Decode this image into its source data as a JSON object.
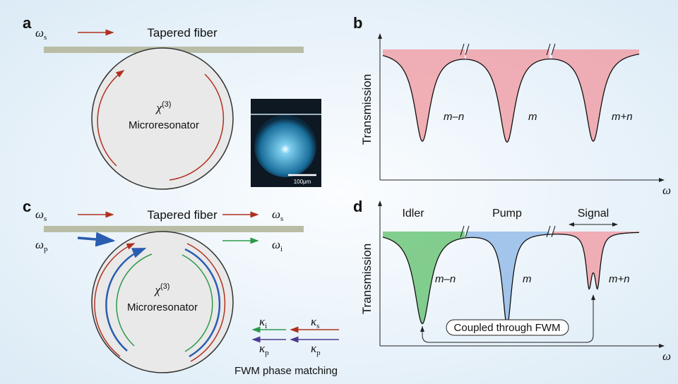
{
  "panels": {
    "a": {
      "label": "a",
      "signal": {
        "symbol": "ω",
        "sub": "s"
      },
      "fiber": "Tapered fiber",
      "resonator": {
        "symbol": "χ",
        "sup": "(3)",
        "name": "Microresonator"
      },
      "scale_bar": "100μm"
    },
    "b": {
      "label": "b",
      "y_axis": "Transmission",
      "x_axis": "ω",
      "modes": [
        "m–n",
        "m",
        "m+n"
      ]
    },
    "c": {
      "label": "c",
      "fiber": "Tapered fiber",
      "inputs": [
        {
          "symbol": "ω",
          "sub": "s"
        },
        {
          "symbol": "ω",
          "sub": "p"
        }
      ],
      "outputs": [
        {
          "symbol": "ω",
          "sub": "s"
        },
        {
          "symbol": "ω",
          "sub": "i"
        }
      ],
      "resonator": {
        "symbol": "χ",
        "sup": "(3)",
        "name": "Microresonator"
      },
      "phase_matching": {
        "rows": [
          [
            {
              "symbol": "κ",
              "sub": "i"
            },
            {
              "symbol": "κ",
              "sub": "s"
            }
          ],
          [
            {
              "symbol": "κ",
              "sub": "p"
            },
            {
              "symbol": "κ",
              "sub": "p"
            }
          ]
        ],
        "caption": "FWM phase matching"
      }
    },
    "d": {
      "label": "d",
      "y_axis": "Transmission",
      "x_axis": "ω",
      "waves": [
        "Idler",
        "Pump",
        "Signal"
      ],
      "modes": [
        "m–n",
        "m",
        "m+n"
      ],
      "coupling": "Coupled through FWM"
    }
  }
}
